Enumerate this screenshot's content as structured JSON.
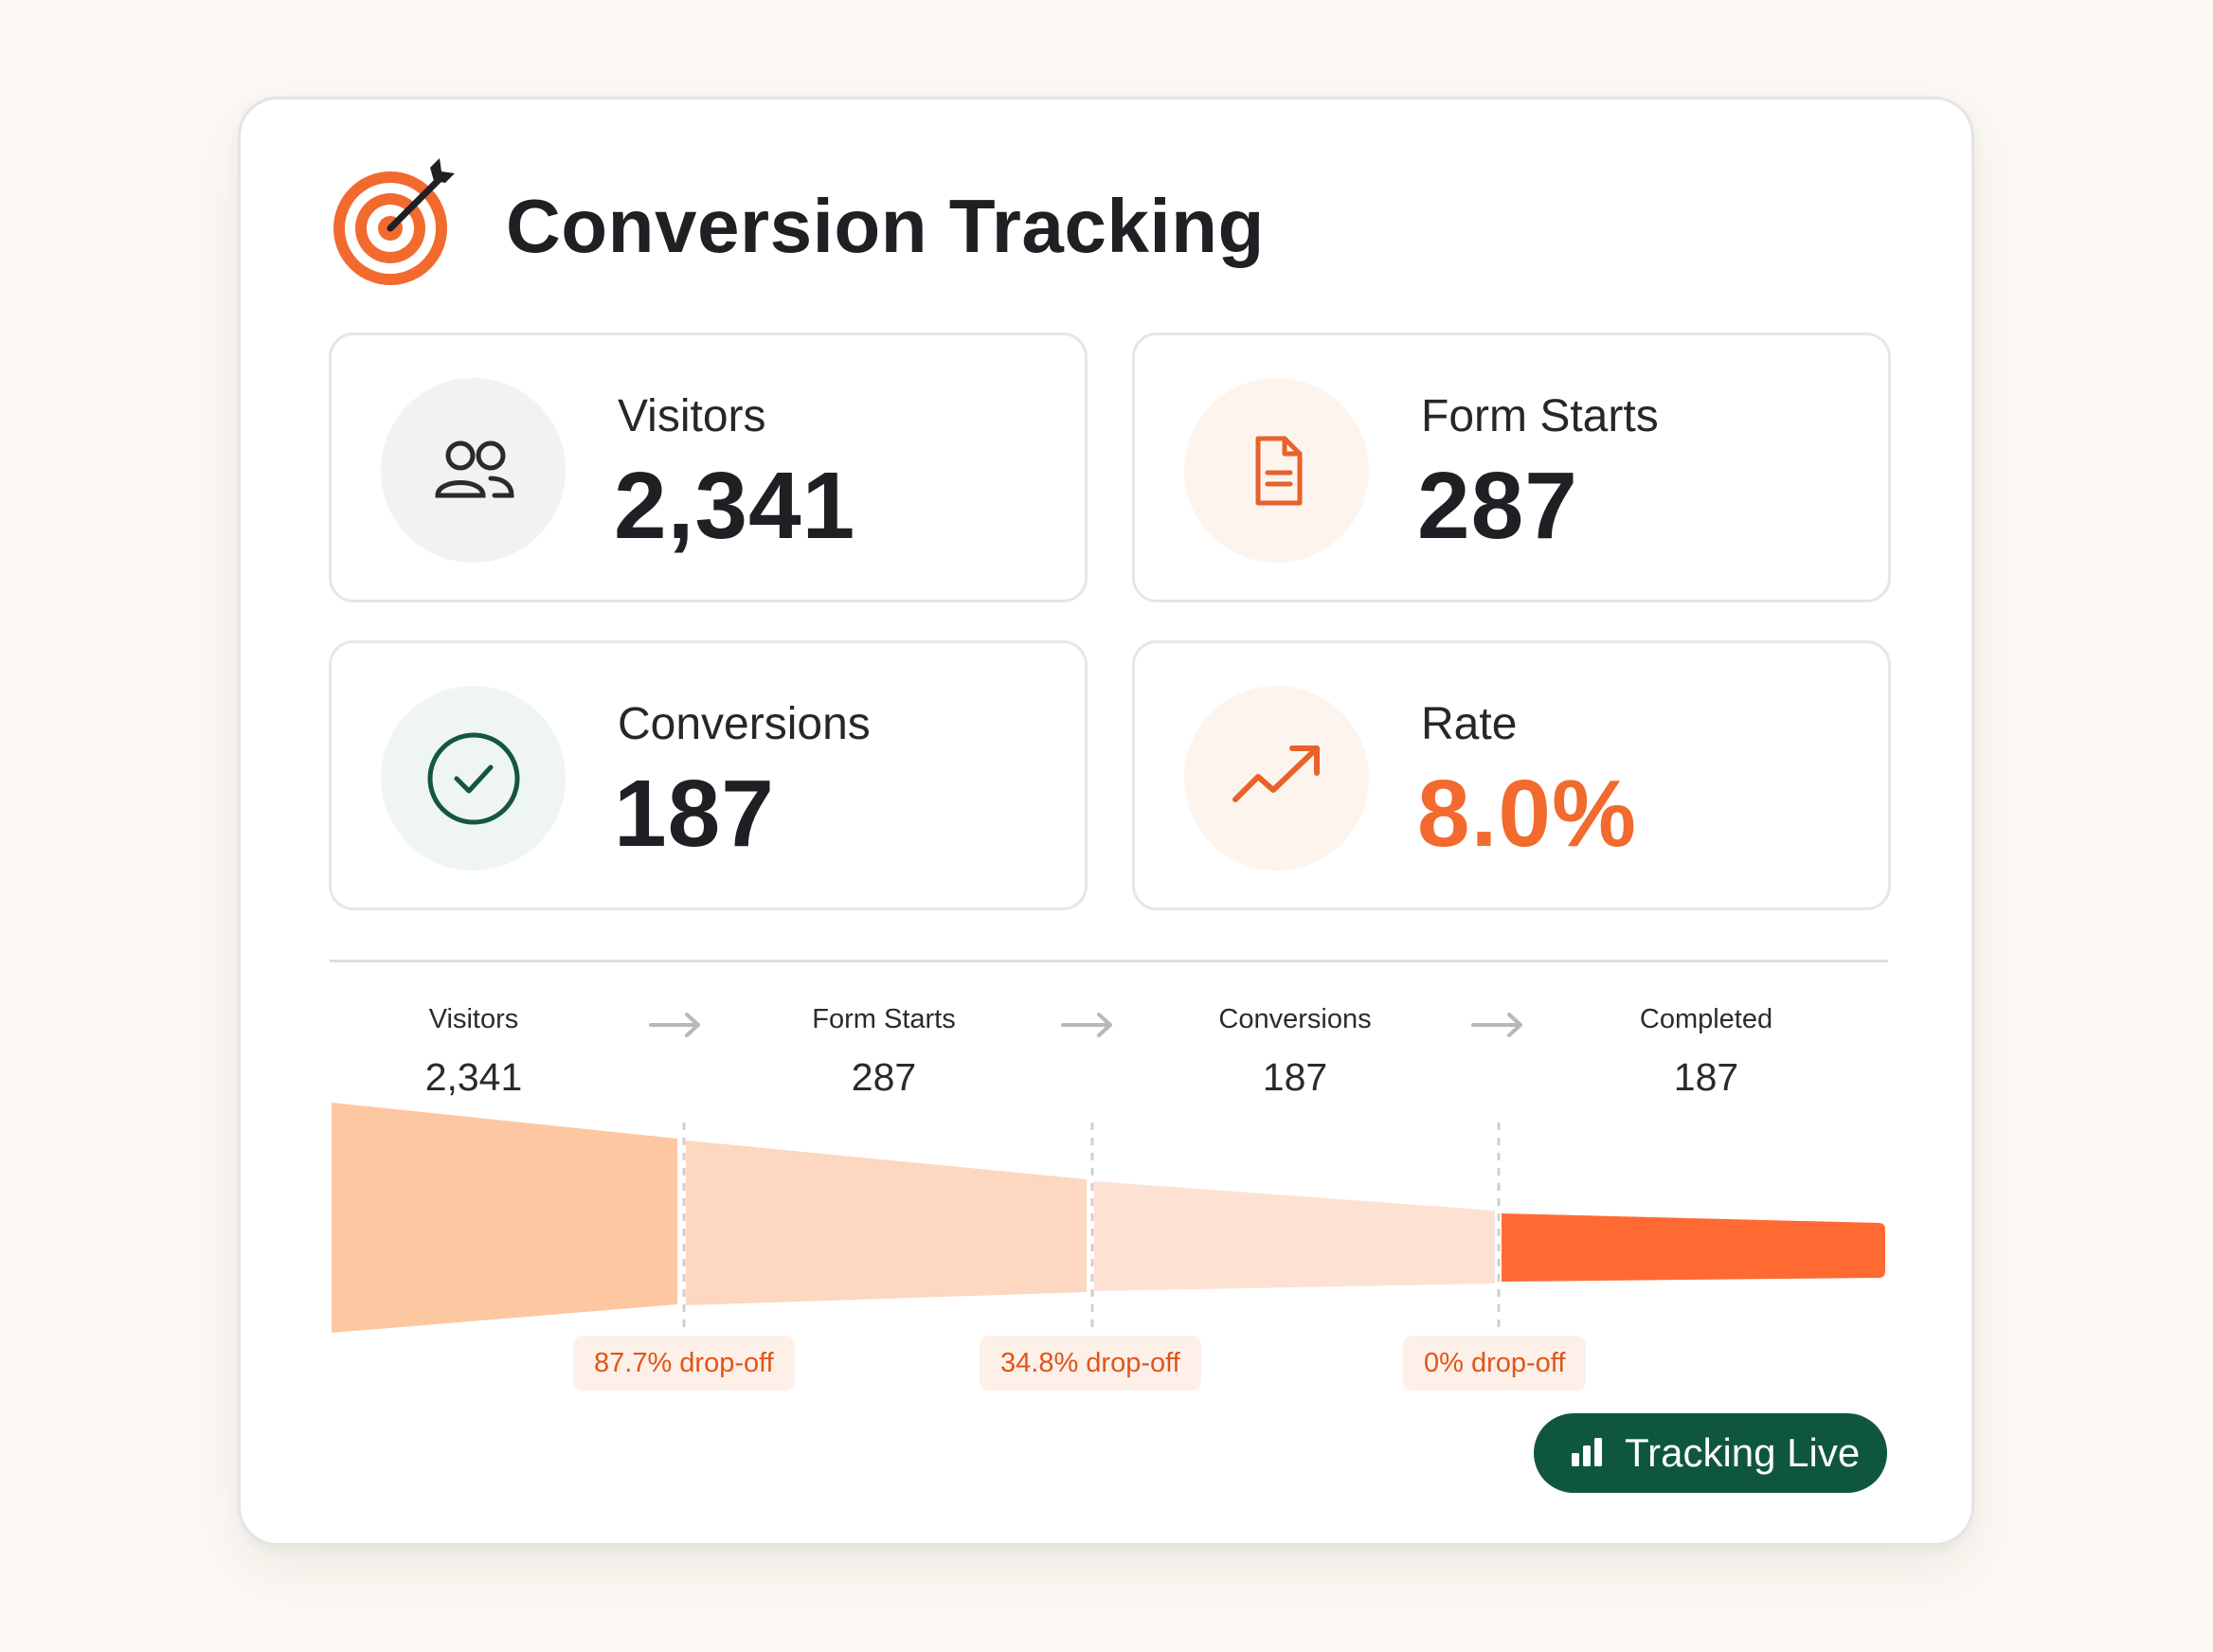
{
  "header": {
    "title": "Conversion Tracking",
    "icon": "target-icon",
    "accent": "#f26a2e"
  },
  "stats": [
    {
      "label": "Visitors",
      "value": "2,341",
      "icon": "users-icon"
    },
    {
      "label": "Form Starts",
      "value": "287",
      "icon": "document-icon"
    },
    {
      "label": "Conversions",
      "value": "187",
      "icon": "check-circle-icon"
    },
    {
      "label": "Rate",
      "value": "8.0%",
      "icon": "trending-up-icon",
      "value_color": "#f26a2e"
    }
  ],
  "funnel": {
    "steps": [
      {
        "label": "Visitors",
        "value": "2,341"
      },
      {
        "label": "Form Starts",
        "value": "287"
      },
      {
        "label": "Conversions",
        "value": "187"
      },
      {
        "label": "Completed",
        "value": "187"
      }
    ],
    "dropoffs": [
      "87.7% drop-off",
      "34.8% drop-off",
      "0% drop-off"
    ],
    "colors": [
      "#fdc7a2",
      "#fdd7c0",
      "#fde1d2",
      "#ff6a33"
    ]
  },
  "status": {
    "label": "Tracking Live",
    "icon": "bar-chart-icon",
    "color": "#0f5640"
  }
}
